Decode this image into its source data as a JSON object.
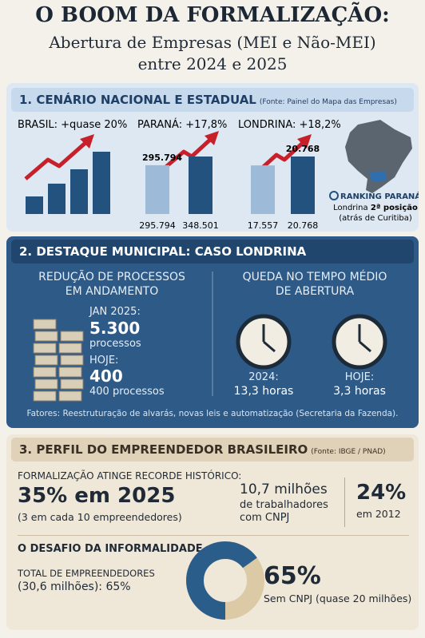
{
  "header": {
    "title": "O BOOM DA FORMALIZAÇÃO:",
    "subtitle_1": "Abertura de Empresas (MEI e Não-MEI)",
    "subtitle_2": "entre 2024 e 2025"
  },
  "section_1": {
    "title": "1. CENÁRIO NACIONAL E ESTADUAL",
    "source": "(Fonte: Painel do Mapa das Empresas)",
    "panels": [
      {
        "label": "BRASIL: +quase 20%"
      },
      {
        "label": "PARANÁ: +17,8%",
        "bars": [
          {
            "value": 295794,
            "label": "295.794"
          },
          {
            "value": 348501,
            "label": "348.501"
          }
        ]
      },
      {
        "label": "LONDRINA: +18,2%",
        "bars": [
          {
            "value": 17557,
            "label": "17.557"
          },
          {
            "value": 20768,
            "label": "20.768"
          }
        ]
      }
    ],
    "ranking": {
      "title": "RANKING PARANÁ:",
      "line_1": "Londrina",
      "emphasis": "2ª posição",
      "line_2": "(atrás de Curitiba)"
    }
  },
  "section_2": {
    "title": "2. DESTAQUE MUNICIPAL: CASO LONDRINA",
    "left": {
      "title_1": "REDUÇÃO DE PROCESSOS",
      "title_2": "EM ANDAMENTO",
      "before_label": "JAN 2025:",
      "before_value": "5.300",
      "before_unit": "processos",
      "after_label": "HOJE:",
      "after_value": "400",
      "after_detail": "400 processos"
    },
    "right": {
      "title_1": "QUEDA NO TEMPO MÉDIO",
      "title_2": "DE ABERTURA",
      "clocks": [
        {
          "label": "2024:",
          "value": "13,3 horas"
        },
        {
          "label": "HOJE:",
          "value": "3,3 horas"
        }
      ]
    },
    "note": "Fatores: Reestruturação de alvarás, novas leis e automatização (Secretaria da Fazenda)."
  },
  "section_3": {
    "title": "3. PERFIL DO EMPREENDEDOR BRASILEIRO",
    "source": "(Fonte: IBGE / PNAD)",
    "record_heading": "FORMALIZAÇÃO ATINGE RECORDE HISTÓRICO:",
    "record_value": "35% em 2025",
    "record_note": "(3 em cada 10 empreendedores)",
    "workers_1": "10,7 milhões",
    "workers_2": "de trabalhadores",
    "workers_3": "com CNPJ",
    "past_value": "24%",
    "past_note": "em 2012",
    "informality_heading": "O DESAFIO DA INFORMALIDADE",
    "total_1": "TOTAL DE EMPREENDEDORES",
    "total_2": "(30,6 milhões): 65%",
    "donut": {
      "value": 65,
      "label": "65%"
    },
    "donut_note": "Sem CNPJ (quase 20 milhões)"
  }
}
